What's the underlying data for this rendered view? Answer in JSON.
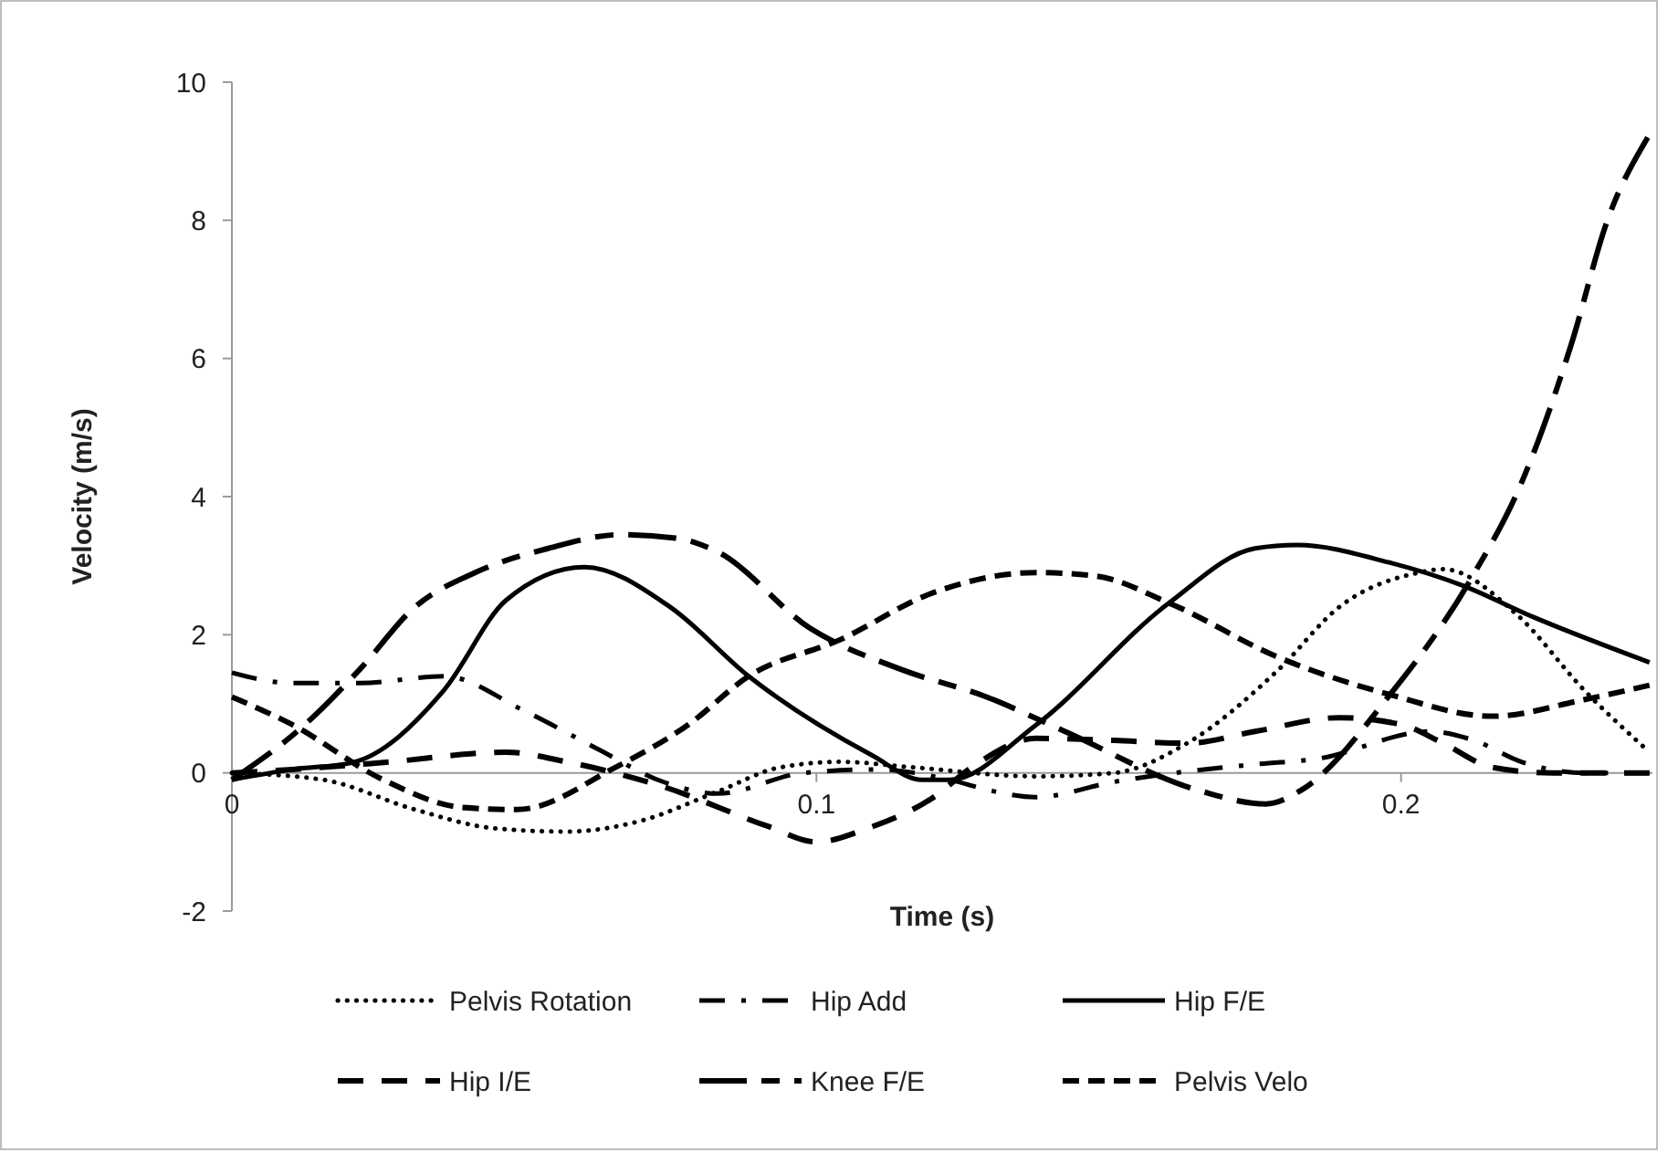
{
  "chart_data": {
    "type": "line",
    "xlabel": "Time (s)",
    "ylabel": "Velocity (m/s)",
    "xlim": [
      0,
      0.243
    ],
    "xticks": [
      0,
      0.1,
      0.2
    ],
    "ylim": [
      -2,
      10
    ],
    "yticks": [
      -2,
      0,
      2,
      4,
      6,
      8,
      10
    ],
    "grid": false,
    "legend": "bottom",
    "marker": "none",
    "series": [
      {
        "name": "Pelvis Rotation",
        "color": "#000000",
        "line_style": "dotted",
        "x": [
          0,
          0.0156,
          0.0313,
          0.0447,
          0.0572,
          0.0697,
          0.0831,
          0.0938,
          0.1041,
          0.1166,
          0.1375,
          0.1509,
          0.1634,
          0.1791,
          0.1894,
          0.2031,
          0.2072,
          0.2197,
          0.2313,
          0.2425
        ],
        "values": [
          0,
          -0.1,
          -0.53,
          -0.8,
          -0.85,
          -0.7,
          -0.27,
          0.08,
          0.16,
          0.08,
          -0.05,
          0,
          0.43,
          1.5,
          2.4,
          2.9,
          2.95,
          2.3,
          1.2,
          0.3
        ]
      },
      {
        "name": "Hip Add",
        "color": "#000000",
        "line_style": "dashdot",
        "x": [
          0,
          0.0103,
          0.0219,
          0.0363,
          0.05,
          0.0625,
          0.0738,
          0.0831,
          0.0978,
          0.1103,
          0.1228,
          0.13,
          0.1375,
          0.1509,
          0.1613,
          0.1759,
          0.1853,
          0.205,
          0.2125,
          0.2206,
          0.2313,
          0.2425
        ],
        "values": [
          1.45,
          1.3,
          1.3,
          1.4,
          0.9,
          0.35,
          -0.13,
          -0.3,
          0,
          0.05,
          -0.1,
          -0.26,
          -0.35,
          -0.13,
          0,
          0.13,
          0.2,
          0.6,
          0.47,
          0.16,
          0,
          0
        ]
      },
      {
        "name": "Hip F/E",
        "color": "#000000",
        "line_style": "solid",
        "x": [
          0,
          0.0103,
          0.0206,
          0.0363,
          0.0469,
          0.0603,
          0.075,
          0.0884,
          0.1094,
          0.1181,
          0.1228,
          0.1375,
          0.1603,
          0.175,
          0.1822,
          0.1978,
          0.2103,
          0.2228,
          0.2425
        ],
        "values": [
          -0.1,
          0.05,
          0.15,
          1.2,
          2.5,
          2.98,
          2.4,
          1.4,
          0.26,
          -0.1,
          -0.1,
          0.69,
          2.46,
          3.25,
          3.3,
          3.05,
          2.72,
          2.25,
          1.6
        ]
      },
      {
        "name": "Hip I/E",
        "color": "#000000",
        "line_style": "dashed",
        "x": [
          0,
          0.0103,
          0.0259,
          0.0469,
          0.0572,
          0.0738,
          0.0916,
          0.1,
          0.1088,
          0.1197,
          0.1269,
          0.1375,
          0.1509,
          0.1634,
          0.175,
          0.1894,
          0.2,
          0.2072,
          0.2156,
          0.2259,
          0.2425
        ],
        "values": [
          0,
          0.05,
          0.15,
          0.3,
          0.16,
          -0.2,
          -0.77,
          -1,
          -0.8,
          -0.37,
          0.1,
          0.5,
          0.47,
          0.43,
          0.6,
          0.8,
          0.7,
          0.43,
          0.08,
          0,
          0
        ]
      },
      {
        "name": "Knee F/E",
        "color": "#000000",
        "line_style": "longdash",
        "x": [
          0,
          0.0125,
          0.0219,
          0.0313,
          0.0416,
          0.0541,
          0.0666,
          0.0759,
          0.0831,
          0.0988,
          0.1144,
          0.1291,
          0.1425,
          0.1656,
          0.1769,
          0.1831,
          0.1978,
          0.2119,
          0.2206,
          0.2291,
          0.2353,
          0.2422
        ],
        "values": [
          -0.1,
          0.7,
          1.5,
          2.4,
          2.9,
          3.25,
          3.45,
          3.4,
          3.2,
          2.1,
          1.5,
          1.1,
          0.6,
          -0.26,
          -0.45,
          -0.24,
          1.1,
          2.8,
          4.2,
          6.2,
          8,
          9.2
        ]
      },
      {
        "name": "Pelvis Velo",
        "color": "#000000",
        "line_style": "shortdash",
        "x": [
          0,
          0.0103,
          0.0259,
          0.0394,
          0.0488,
          0.0656,
          0.0781,
          0.0884,
          0.1041,
          0.1197,
          0.1375,
          0.1478,
          0.1603,
          0.1791,
          0.1978,
          0.2156,
          0.2313,
          0.2425
        ],
        "values": [
          1.1,
          0.7,
          -0.1,
          -0.5,
          -0.53,
          0.08,
          0.7,
          1.4,
          1.93,
          2.6,
          2.9,
          2.85,
          2.46,
          1.67,
          1.14,
          0.82,
          1.06,
          1.27
        ]
      }
    ]
  }
}
